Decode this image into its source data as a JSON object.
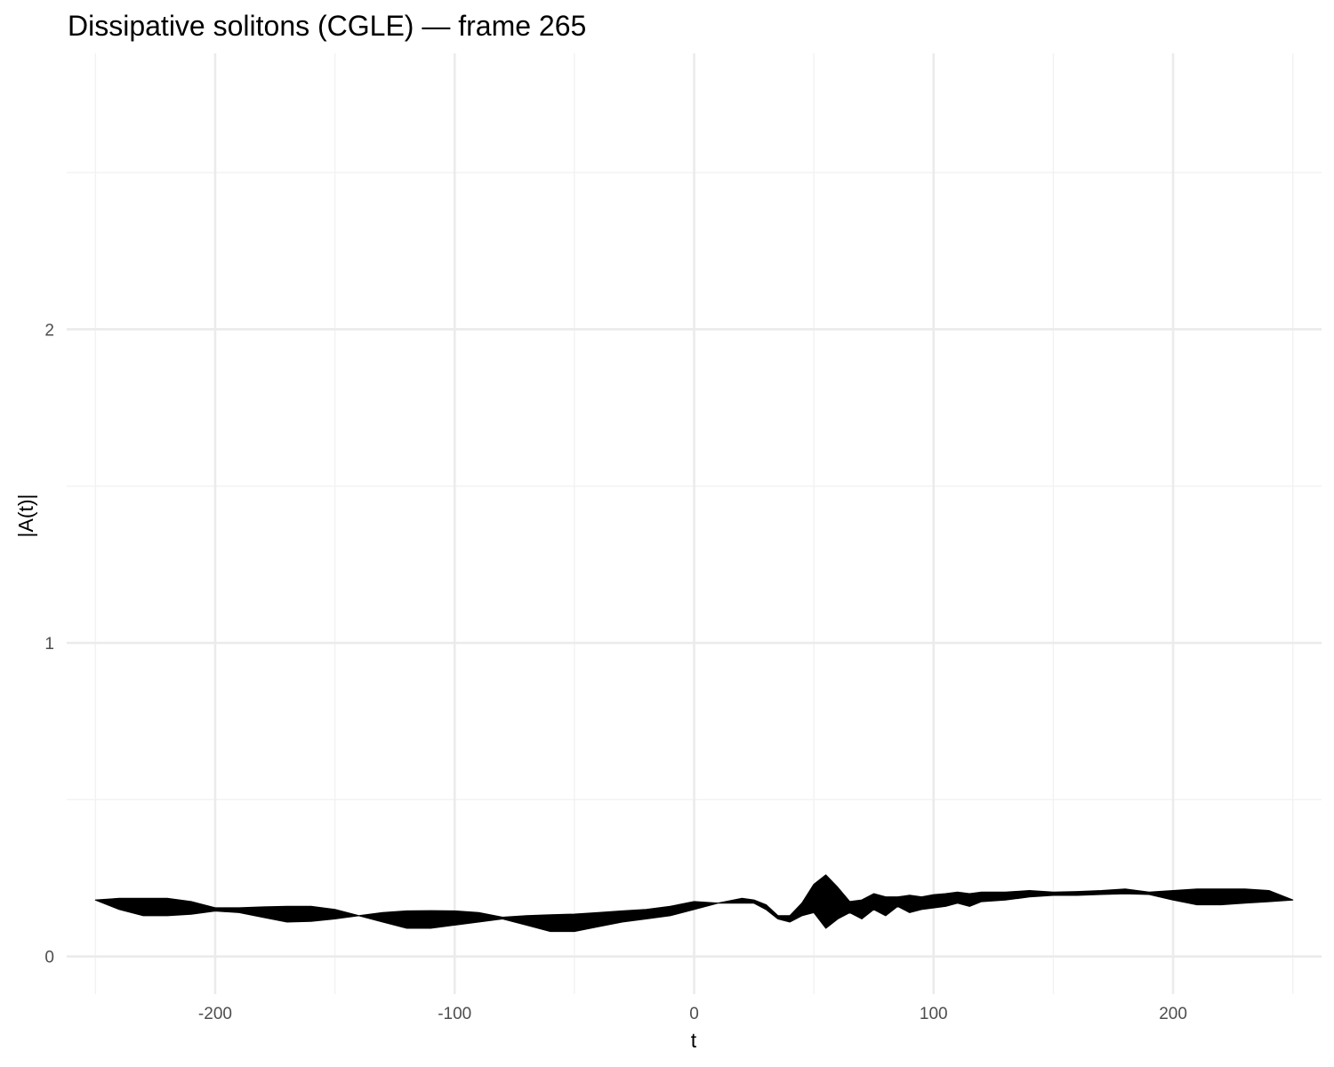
{
  "chart_data": {
    "type": "area",
    "title": "Dissipative solitons (CGLE) — frame 265",
    "xlabel": "t",
    "ylabel": "|A(t)|",
    "xlim": [
      -262,
      262
    ],
    "ylim": [
      -0.12,
      2.88
    ],
    "x_ticks": [
      -200,
      -100,
      0,
      100,
      200
    ],
    "x_tick_labels": [
      "-200",
      "-100",
      "0",
      "100",
      "200"
    ],
    "y_ticks": [
      0,
      1,
      2
    ],
    "y_tick_labels": [
      "0",
      "1",
      "2"
    ],
    "x_minor_ticks": [
      -250,
      -150,
      -50,
      50,
      150,
      250
    ],
    "y_minor_ticks": [
      0.5,
      1.5,
      2.5
    ],
    "grid": true,
    "legend": "none",
    "series_color": "#000000",
    "series": [
      {
        "x": [
          -250,
          -240,
          -230,
          -220,
          -210,
          -200,
          -190,
          -180,
          -170,
          -160,
          -150,
          -140,
          -130,
          -120,
          -110,
          -100,
          -90,
          -80,
          -70,
          -60,
          -50,
          -40,
          -30,
          -20,
          -10,
          0,
          10,
          20,
          25,
          30,
          35,
          40,
          45,
          50,
          55,
          60,
          65,
          70,
          75,
          80,
          85,
          90,
          95,
          100,
          105,
          110,
          115,
          120,
          130,
          140,
          150,
          160,
          170,
          180,
          190,
          200,
          210,
          220,
          230,
          240,
          250
        ],
        "upper": [
          0.18,
          0.185,
          0.185,
          0.185,
          0.175,
          0.155,
          0.155,
          0.158,
          0.16,
          0.16,
          0.15,
          0.13,
          0.14,
          0.145,
          0.146,
          0.145,
          0.14,
          0.125,
          0.13,
          0.133,
          0.135,
          0.14,
          0.145,
          0.15,
          0.16,
          0.175,
          0.17,
          0.185,
          0.18,
          0.165,
          0.13,
          0.13,
          0.17,
          0.23,
          0.26,
          0.22,
          0.175,
          0.18,
          0.2,
          0.19,
          0.19,
          0.195,
          0.19,
          0.197,
          0.2,
          0.205,
          0.2,
          0.205,
          0.205,
          0.21,
          0.205,
          0.207,
          0.21,
          0.215,
          0.205,
          0.21,
          0.215,
          0.215,
          0.215,
          0.21,
          0.18
        ],
        "lower": [
          0.18,
          0.15,
          0.13,
          0.13,
          0.135,
          0.145,
          0.14,
          0.125,
          0.11,
          0.112,
          0.12,
          0.13,
          0.11,
          0.09,
          0.09,
          0.1,
          0.11,
          0.12,
          0.1,
          0.08,
          0.08,
          0.095,
          0.11,
          0.12,
          0.13,
          0.15,
          0.17,
          0.17,
          0.17,
          0.15,
          0.12,
          0.11,
          0.13,
          0.14,
          0.09,
          0.12,
          0.14,
          0.12,
          0.15,
          0.13,
          0.16,
          0.14,
          0.15,
          0.155,
          0.16,
          0.17,
          0.16,
          0.175,
          0.18,
          0.19,
          0.195,
          0.195,
          0.198,
          0.2,
          0.198,
          0.18,
          0.165,
          0.165,
          0.17,
          0.175,
          0.18
        ]
      }
    ]
  }
}
